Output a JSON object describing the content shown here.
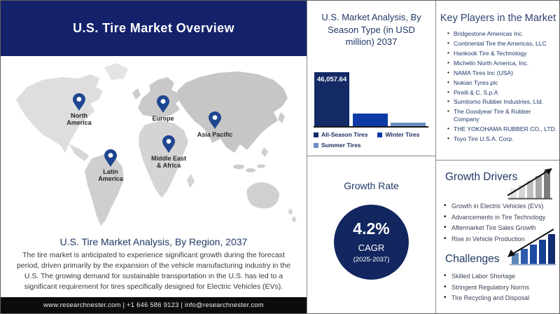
{
  "header": {
    "title": "U.S. Tire Market Overview"
  },
  "map": {
    "regions": [
      {
        "label": "North\nAmerica"
      },
      {
        "label": "Europe"
      },
      {
        "label": "Asia Pacific"
      },
      {
        "label": "Latin\nAmerica"
      },
      {
        "label": "Middle East\n& Africa"
      }
    ],
    "caption": "U.S. Tire Market Analysis, By Region, 2037",
    "description": "The tire market is anticipated to experience significant growth during the forecast period, driven primarily by the expansion of the vehicle manufacturing industry in the U.S. The growing demand for sustainable transportation in the U.S. has led to a significant requirement for tires specifically designed for Electric Vehicles (EVs)."
  },
  "footer": {
    "text": "www.researchnester.com  | +1 646 586 9123 | info@researchnester.com"
  },
  "chart_data": {
    "type": "bar",
    "title": "U.S. Market Analysis, By Season Type (in USD million) 2037",
    "categories": [
      "All-Season Tires",
      "Winter Tires",
      "Summer Tires"
    ],
    "values": [
      46057.64,
      10800,
      3000
    ],
    "value_labels": [
      "46,057.64",
      "",
      ""
    ],
    "colors": [
      "#132a66",
      "#0d3ba6",
      "#6c8cc4"
    ],
    "xlabel": "",
    "ylabel": "USD million",
    "ylim": [
      0,
      48000
    ],
    "legend_position": "bottom",
    "grid": false
  },
  "growth_rate": {
    "title": "Growth Rate",
    "value": "4.2%",
    "metric": "CAGR",
    "period": "(2025-2037)"
  },
  "key_players": {
    "title": "Key Players in the Market",
    "items": [
      "Bridgestone Americas Inc.",
      "Continental Tire the Americas, LLC",
      "Hankook Tire & Technology",
      "Michelin North America, Inc.",
      "NAMA Tires Inc (USA)",
      "Nokian Tyres plc",
      "Pirelli & C. S.p.A",
      "Sumitomo Rubber Industries, Ltd.",
      "The Goodyear Tire & Rubber Company",
      "THE YOKOHAMA RUBBER CO., LTD.",
      "Toyo Tire U.S.A. Corp."
    ]
  },
  "growth_drivers": {
    "title": "Growth Drivers",
    "items": [
      "Growth in Electric Vehicles (EVs)",
      "Advancements in Tire Technology",
      "Aftermarket Tire Sales Growth",
      "Rise in Vehicle Production"
    ]
  },
  "challenges": {
    "title": "Challenges",
    "items": [
      "Skilled Labor Shortage",
      "Stringent Regulatory Norms",
      "Tire Recycling and Disposal"
    ]
  },
  "colors": {
    "header_navy": "#14226b",
    "panel_title_navy": "#203864",
    "circle_navy": "#12265f",
    "pin_navy": "#1f4690",
    "footer_black": "#0c0c0c",
    "map_gray": "#d4d4d4"
  }
}
